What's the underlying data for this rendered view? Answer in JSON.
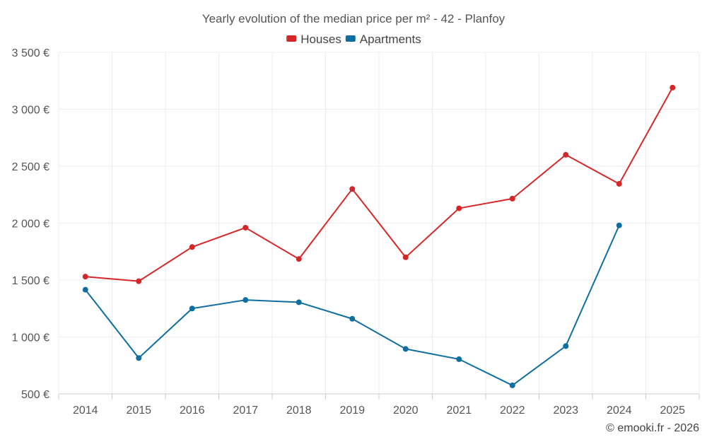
{
  "chart_data": {
    "type": "line",
    "title": "Yearly evolution of the median price per m² - 42 - Planfoy",
    "categories": [
      "2014",
      "2015",
      "2016",
      "2017",
      "2018",
      "2019",
      "2020",
      "2021",
      "2022",
      "2023",
      "2024",
      "2025"
    ],
    "series": [
      {
        "name": "Houses",
        "color": "#d62728",
        "values": [
          1530,
          1490,
          1790,
          1960,
          1685,
          2300,
          1700,
          2130,
          2215,
          2600,
          2345,
          3190
        ]
      },
      {
        "name": "Apartments",
        "color": "#0f6ea0",
        "values": [
          1415,
          815,
          1250,
          1325,
          1305,
          1160,
          895,
          805,
          575,
          920,
          1980,
          null
        ]
      }
    ],
    "ylim": [
      500,
      3500
    ],
    "yticks": [
      500,
      1000,
      1500,
      2000,
      2500,
      3000,
      3500
    ],
    "ytick_labels": [
      "500 €",
      "1 000 €",
      "1 500 €",
      "2 000 €",
      "2 500 €",
      "3 000 €",
      "3 500 €"
    ],
    "grid": true,
    "legend_position": "top-center",
    "xlabel": "",
    "ylabel": ""
  },
  "credit": "© emooki.fr - 2026"
}
